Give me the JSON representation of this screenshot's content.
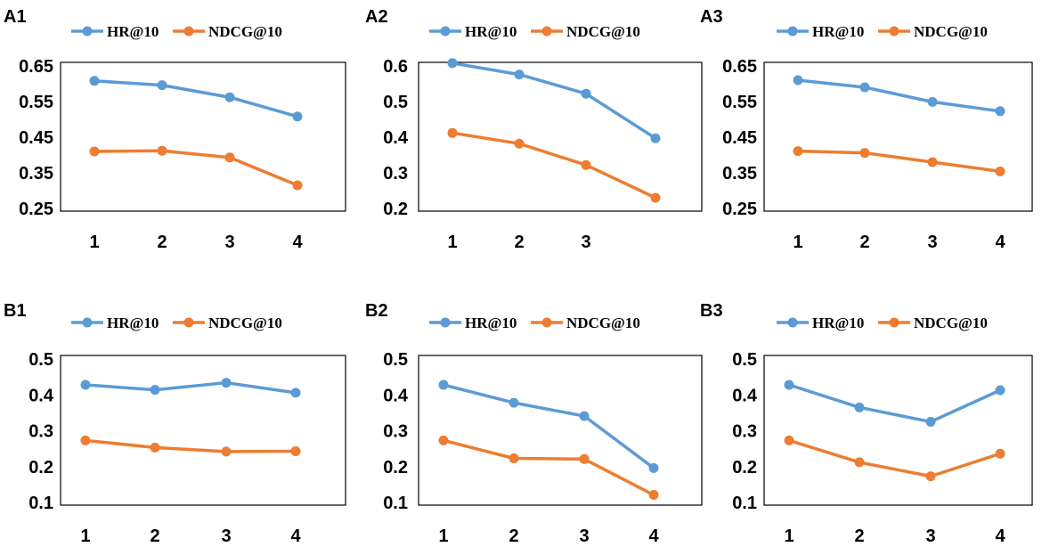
{
  "series_colors": {
    "HR@10": "#5B9BD5",
    "NDCG@10": "#ED7D31"
  },
  "chart_data": [
    {
      "type": "line",
      "panel_label": "A1",
      "categories": [
        "1",
        "2",
        "3",
        "4"
      ],
      "series": [
        {
          "name": "HR@10",
          "values": [
            0.608,
            0.596,
            0.562,
            0.508
          ]
        },
        {
          "name": "NDCG@10",
          "values": [
            0.41,
            0.412,
            0.393,
            0.315
          ]
        }
      ],
      "ylim": [
        0.25,
        0.65
      ],
      "yticks": [
        "0.65",
        "0.55",
        "0.45",
        "0.35",
        "0.25"
      ],
      "ytick_values": [
        0.65,
        0.55,
        0.45,
        0.35,
        0.25
      ],
      "legend": [
        "HR@10",
        "NDCG@10"
      ],
      "legend_position": "top"
    },
    {
      "type": "line",
      "panel_label": "A2",
      "categories": [
        "1",
        "2",
        "3",
        ""
      ],
      "series": [
        {
          "name": "HR@10",
          "values": [
            0.608,
            0.576,
            0.522,
            0.397
          ]
        },
        {
          "name": "NDCG@10",
          "values": [
            0.412,
            0.382,
            0.322,
            0.23
          ]
        }
      ],
      "ylim": [
        0.2,
        0.6
      ],
      "yticks": [
        "0.6",
        "0.5",
        "0.4",
        "0.3",
        "0.2"
      ],
      "ytick_values": [
        0.6,
        0.5,
        0.4,
        0.3,
        0.2
      ],
      "legend": [
        "HR@10",
        "NDCG@10"
      ],
      "legend_position": "top"
    },
    {
      "type": "line",
      "panel_label": "A3",
      "categories": [
        "1",
        "2",
        "3",
        "4"
      ],
      "series": [
        {
          "name": "HR@10",
          "values": [
            0.61,
            0.59,
            0.549,
            0.523
          ]
        },
        {
          "name": "NDCG@10",
          "values": [
            0.411,
            0.406,
            0.38,
            0.354
          ]
        }
      ],
      "ylim": [
        0.25,
        0.65
      ],
      "yticks": [
        "0.65",
        "0.55",
        "0.45",
        "0.35",
        "0.25"
      ],
      "ytick_values": [
        0.65,
        0.55,
        0.45,
        0.35,
        0.25
      ],
      "legend": [
        "HR@10",
        "NDCG@10"
      ],
      "legend_position": "top"
    },
    {
      "type": "line",
      "panel_label": "B1",
      "categories": [
        "1",
        "2",
        "3",
        "4"
      ],
      "series": [
        {
          "name": "HR@10",
          "values": [
            0.428,
            0.414,
            0.434,
            0.406
          ]
        },
        {
          "name": "NDCG@10",
          "values": [
            0.273,
            0.253,
            0.242,
            0.243
          ]
        }
      ],
      "ylim": [
        0.1,
        0.5
      ],
      "yticks": [
        "0.5",
        "0.4",
        "0.3",
        "0.2",
        "0.1"
      ],
      "ytick_values": [
        0.5,
        0.4,
        0.3,
        0.2,
        0.1
      ],
      "legend": [
        "HR@10",
        "NDCG@10"
      ],
      "legend_position": "top"
    },
    {
      "type": "line",
      "panel_label": "B2",
      "categories": [
        "1",
        "2",
        "3",
        "4"
      ],
      "series": [
        {
          "name": "HR@10",
          "values": [
            0.428,
            0.378,
            0.341,
            0.196
          ]
        },
        {
          "name": "NDCG@10",
          "values": [
            0.273,
            0.223,
            0.221,
            0.121
          ]
        }
      ],
      "ylim": [
        0.1,
        0.5
      ],
      "yticks": [
        "0.5",
        "0.4",
        "0.3",
        "0.2",
        "0.1"
      ],
      "ytick_values": [
        0.5,
        0.4,
        0.3,
        0.2,
        0.1
      ],
      "legend": [
        "HR@10",
        "NDCG@10"
      ],
      "legend_position": "top"
    },
    {
      "type": "line",
      "panel_label": "B3",
      "categories": [
        "1",
        "2",
        "3",
        "4"
      ],
      "series": [
        {
          "name": "HR@10",
          "values": [
            0.428,
            0.365,
            0.325,
            0.413
          ]
        },
        {
          "name": "NDCG@10",
          "values": [
            0.273,
            0.212,
            0.173,
            0.236
          ]
        }
      ],
      "ylim": [
        0.1,
        0.5
      ],
      "yticks": [
        "0.5",
        "0.4",
        "0.3",
        "0.2",
        "0.1"
      ],
      "ytick_values": [
        0.5,
        0.4,
        0.3,
        0.2,
        0.1
      ],
      "legend": [
        "HR@10",
        "NDCG@10"
      ],
      "legend_position": "top"
    }
  ]
}
